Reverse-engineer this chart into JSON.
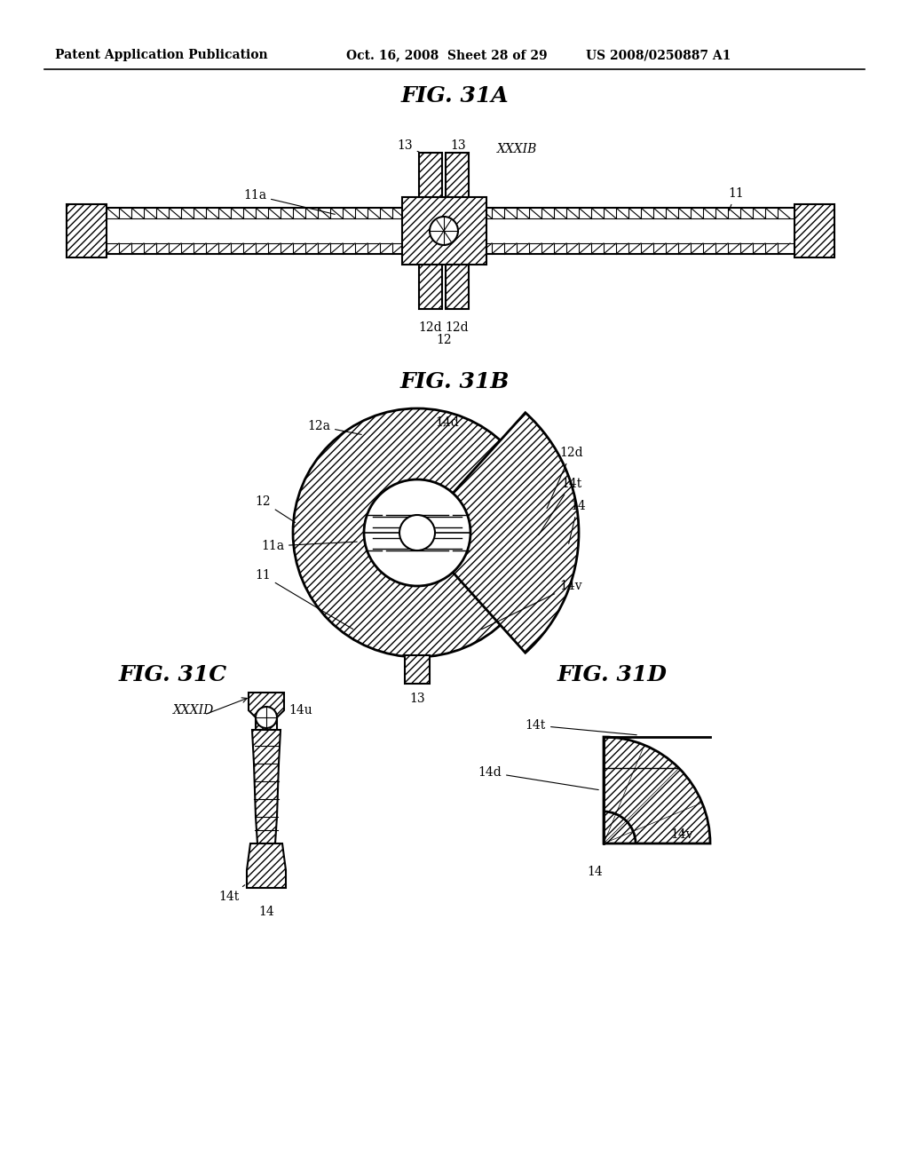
{
  "header_left": "Patent Application Publication",
  "header_mid": "Oct. 16, 2008  Sheet 28 of 29",
  "header_right": "US 2008/0250887 A1",
  "fig_title_A": "FIG. 31A",
  "fig_title_B": "FIG. 31B",
  "fig_title_C": "FIG. 31C",
  "fig_title_D": "FIG. 31D",
  "bg_color": "#ffffff",
  "line_color": "#000000",
  "header_fontsize": 10,
  "fig_title_fontsize": 18,
  "label_fontsize": 10
}
